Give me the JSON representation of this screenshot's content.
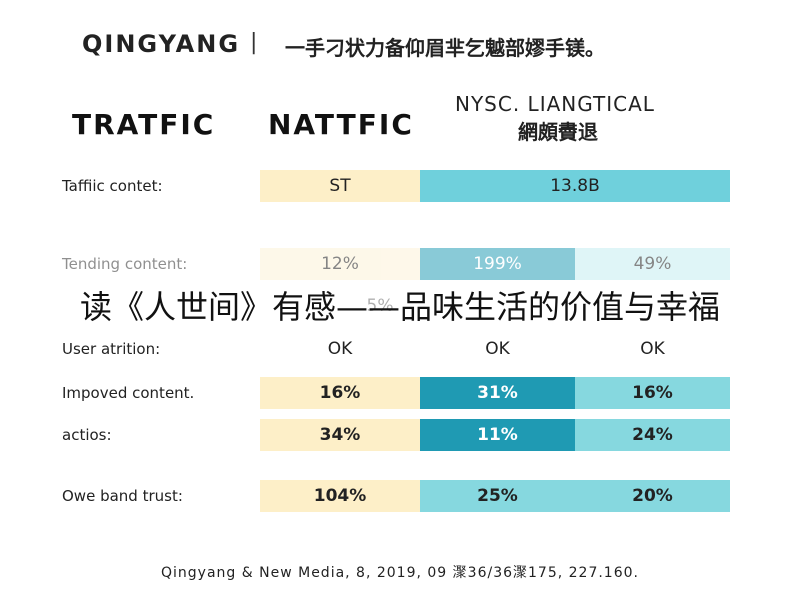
{
  "header": {
    "brand": "QINGYANG",
    "separator": "|",
    "tagline": "一手刁状力备仰眉芈乞魆部嫪手镁。"
  },
  "columns": [
    "TRATFIC",
    "NATTFIC",
    "NYSC. LIANGTICAL"
  ],
  "column_subtitle": "網頗賮退",
  "rows": [
    {
      "label": "Taffiic contet:",
      "cells": [
        "ST",
        "13.8B"
      ]
    },
    {
      "label": "Tending content:",
      "cells": [
        "12%",
        "199%",
        "49%"
      ]
    },
    {
      "cells": [
        "5%"
      ]
    },
    {
      "label": "User atrition:",
      "cells": [
        "OK",
        "OK",
        "OK"
      ]
    },
    {
      "label": "Impoved content.",
      "cells": [
        "16%",
        "31%",
        "16%"
      ]
    },
    {
      "label": "actios:",
      "cells": [
        "34%",
        "11%",
        "24%"
      ]
    },
    {
      "label": "Owe band trust:",
      "cells": [
        "104%",
        "25%",
        "20%"
      ]
    }
  ],
  "overlay": "读《人世间》有感——品味生活的价值与幸福",
  "footer": "Qingyang & New Media, 8, 2019, 09 㵵36/36㵵175, 227.160."
}
